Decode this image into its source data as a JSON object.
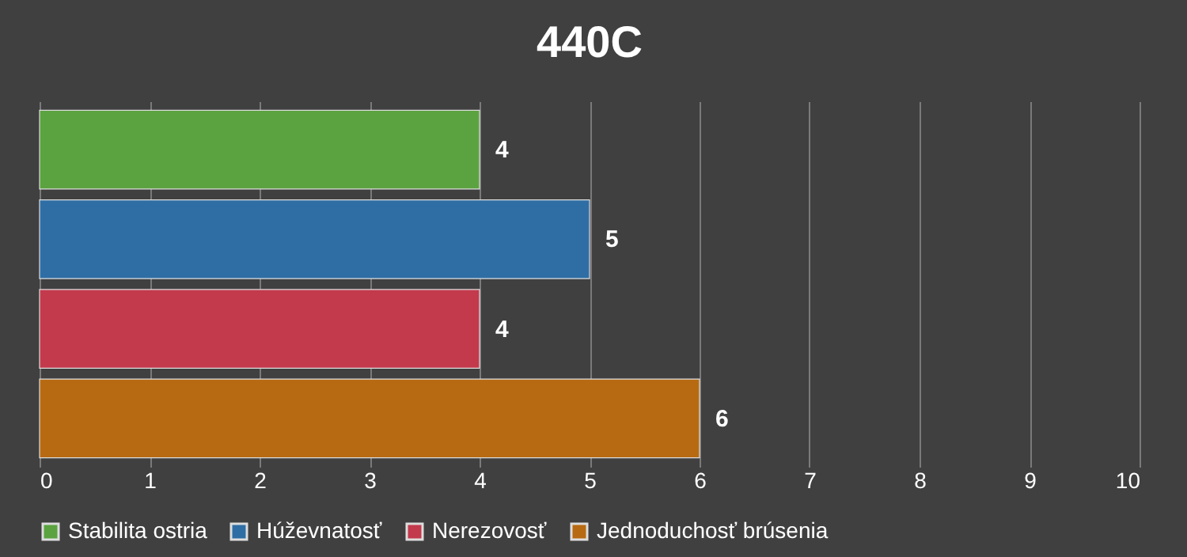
{
  "chart_data": {
    "type": "bar",
    "orientation": "horizontal",
    "title": "440C",
    "categories": [
      null
    ],
    "series": [
      {
        "name": "Stabilita ostria",
        "color": "#5ba340",
        "values": [
          4
        ]
      },
      {
        "name": "Húževnatosť",
        "color": "#2f6ea5",
        "values": [
          5
        ]
      },
      {
        "name": "Nerezovosť",
        "color": "#c23a4c",
        "values": [
          4
        ]
      },
      {
        "name": "Jednoduchosť brúsenia",
        "color": "#b86a12",
        "values": [
          6
        ]
      }
    ],
    "xlim": [
      0,
      10
    ],
    "xticks": [
      0,
      1,
      2,
      3,
      4,
      5,
      6,
      7,
      8,
      9,
      10
    ],
    "grid": "x",
    "legend": "bottom",
    "data_labels": true,
    "tick_labels": "x"
  }
}
